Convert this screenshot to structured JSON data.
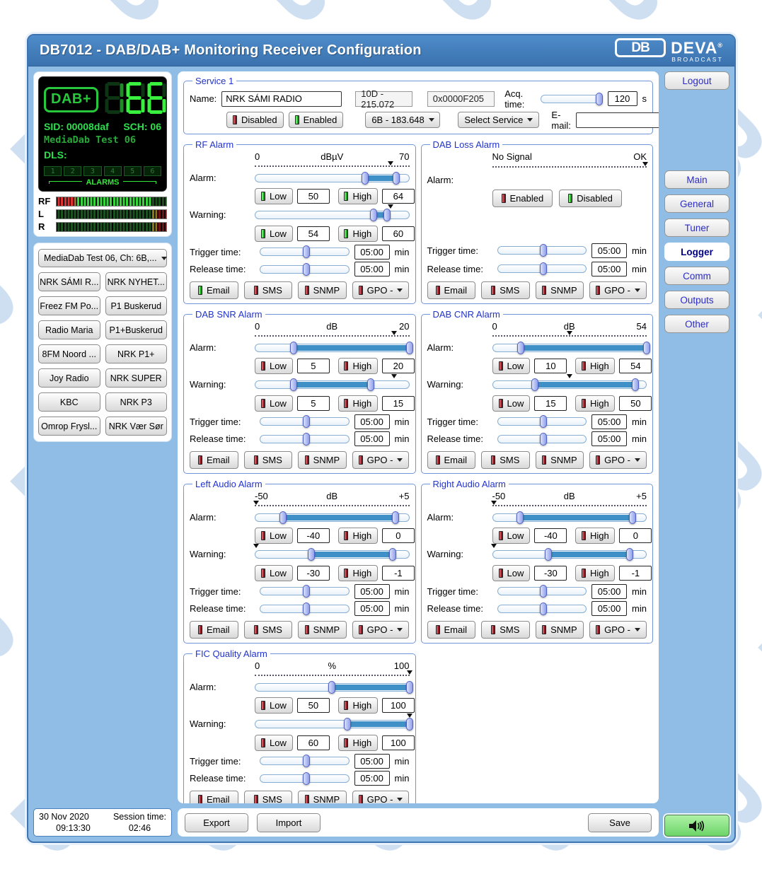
{
  "window": {
    "title": "DB7012 - DAB/DAB+ Monitoring Receiver Configuration",
    "logo": {
      "monogram": "DB",
      "brand": "DEVA",
      "reg": "®",
      "sub": "BROADCAST"
    }
  },
  "lcd": {
    "badge": "DAB+",
    "digits": [
      {
        "char": "1",
        "level": "dim"
      },
      {
        "char": "6",
        "level": "bright"
      },
      {
        "char": "6",
        "level": "bright"
      }
    ],
    "sid": "SID: 00008daf",
    "sch": "SCH: 06",
    "ensemble": "MediaDab Test 06",
    "dls": "DLS:",
    "alarm_cells": [
      "1",
      "2",
      "3",
      "4",
      "5",
      "6"
    ],
    "alarms_label": "ALARMS"
  },
  "meters": [
    {
      "label": "RF",
      "kind": "rf"
    },
    {
      "label": "L",
      "kind": "audio"
    },
    {
      "label": "R",
      "kind": "audio"
    }
  ],
  "stations": {
    "dropdown": "MediaDab Test 06, Ch: 6B,...",
    "buttons": [
      "NRK SÁMI R...",
      "NRK NYHET...",
      "Freez FM Po...",
      "P1 Buskerud",
      "Radio Maria",
      "P1+Buskerud",
      "8FM Noord ...",
      "NRK P1+",
      "Joy Radio",
      "NRK SUPER",
      "KBC",
      "NRK P3",
      "Omrop Frysl...",
      "NRK Vær Sør"
    ]
  },
  "service": {
    "legend": "Service 1",
    "name_label": "Name:",
    "name_value": "NRK SÁMI RADIO",
    "freq_info": "10D - 215.072",
    "hex_id": "0x0000F205",
    "acq_label": "Acq. time:",
    "acq_value": "120",
    "acq_unit": "s",
    "acq_pct": 95,
    "disabled_label": "Disabled",
    "enabled_label": "Enabled",
    "channel_dropdown": "6B - 183.648",
    "service_dropdown": "Select Service",
    "email_label": "E-mail:",
    "email_value": ""
  },
  "labels": {
    "alarm": "Alarm:",
    "warning": "Warning:",
    "trigger": "Trigger time:",
    "release": "Release time:",
    "low": "Low",
    "high": "High",
    "min": "min"
  },
  "panels": [
    {
      "title": "RF Alarm",
      "type": "range",
      "scale": {
        "left": "0",
        "mid": "dBµV",
        "right": "70"
      },
      "marker_pct": 88,
      "alarm": {
        "low": "50",
        "high": "64",
        "low_pct": 71.4,
        "high_pct": 91.4,
        "led": "green"
      },
      "warning": {
        "low": "54",
        "high": "60",
        "low_pct": 77.1,
        "high_pct": 85.7,
        "led": "green"
      },
      "trigger": "05:00",
      "release": "05:00",
      "trigger_pct": 52,
      "release_pct": 52,
      "notify": [
        {
          "label": "Email",
          "led": "green"
        },
        {
          "label": "SMS",
          "led": "red"
        },
        {
          "label": "SNMP",
          "led": "red"
        },
        {
          "label": "GPO -",
          "led": "red",
          "dropdown": true
        }
      ]
    },
    {
      "title": "DAB Loss Alarm",
      "type": "enable",
      "scale": {
        "left": "No Signal",
        "mid": "",
        "right": "OK"
      },
      "marker_pct": 99,
      "buttons": [
        {
          "label": "Enabled",
          "led": "red"
        },
        {
          "label": "Disabled",
          "led": "green"
        }
      ],
      "trigger": "05:00",
      "release": "05:00",
      "trigger_pct": 52,
      "release_pct": 52,
      "notify": [
        {
          "label": "Email",
          "led": "red"
        },
        {
          "label": "SMS",
          "led": "red"
        },
        {
          "label": "SNMP",
          "led": "red"
        },
        {
          "label": "GPO -",
          "led": "red",
          "dropdown": true
        }
      ]
    },
    {
      "title": "DAB SNR Alarm",
      "type": "range",
      "scale": {
        "left": "0",
        "mid": "dB",
        "right": "20"
      },
      "marker_pct": 90,
      "alarm": {
        "low": "5",
        "high": "20",
        "low_pct": 25,
        "high_pct": 100,
        "led": "red"
      },
      "warning": {
        "low": "5",
        "high": "15",
        "low_pct": 25,
        "high_pct": 75,
        "led": "red"
      },
      "trigger": "05:00",
      "release": "05:00",
      "trigger_pct": 52,
      "release_pct": 52,
      "notify": [
        {
          "label": "Email",
          "led": "red"
        },
        {
          "label": "SMS",
          "led": "red"
        },
        {
          "label": "SNMP",
          "led": "red"
        },
        {
          "label": "GPO -",
          "led": "red",
          "dropdown": true
        }
      ]
    },
    {
      "title": "DAB CNR Alarm",
      "type": "range",
      "scale": {
        "left": "0",
        "mid": "dB",
        "right": "54"
      },
      "marker_pct": 50,
      "alarm": {
        "low": "10",
        "high": "54",
        "low_pct": 18.5,
        "high_pct": 100,
        "led": "red"
      },
      "warning": {
        "low": "15",
        "high": "50",
        "low_pct": 27.8,
        "high_pct": 92.6,
        "led": "red"
      },
      "trigger": "05:00",
      "release": "05:00",
      "trigger_pct": 52,
      "release_pct": 52,
      "notify": [
        {
          "label": "Email",
          "led": "red"
        },
        {
          "label": "SMS",
          "led": "red"
        },
        {
          "label": "SNMP",
          "led": "red"
        },
        {
          "label": "GPO -",
          "led": "red",
          "dropdown": true
        }
      ]
    },
    {
      "title": "Left Audio Alarm",
      "type": "range",
      "scale": {
        "left": "-50",
        "mid": "dB",
        "right": "+5"
      },
      "marker_pct": 1,
      "alarm": {
        "low": "-40",
        "high": "0",
        "low_pct": 18.2,
        "high_pct": 90.9,
        "led": "red"
      },
      "warning": {
        "low": "-30",
        "high": "-1",
        "low_pct": 36.4,
        "high_pct": 89.1,
        "led": "red"
      },
      "trigger": "05:00",
      "release": "05:00",
      "trigger_pct": 52,
      "release_pct": 52,
      "notify": [
        {
          "label": "Email",
          "led": "red"
        },
        {
          "label": "SMS",
          "led": "red"
        },
        {
          "label": "SNMP",
          "led": "red"
        },
        {
          "label": "GPO -",
          "led": "red",
          "dropdown": true
        }
      ]
    },
    {
      "title": "Right Audio Alarm",
      "type": "range",
      "scale": {
        "left": "-50",
        "mid": "dB",
        "right": "+5"
      },
      "marker_pct": 1,
      "alarm": {
        "low": "-40",
        "high": "0",
        "low_pct": 18.2,
        "high_pct": 90.9,
        "led": "red"
      },
      "warning": {
        "low": "-30",
        "high": "-1",
        "low_pct": 36.4,
        "high_pct": 89.1,
        "led": "red"
      },
      "trigger": "05:00",
      "release": "05:00",
      "trigger_pct": 52,
      "release_pct": 52,
      "notify": [
        {
          "label": "Email",
          "led": "red"
        },
        {
          "label": "SMS",
          "led": "red"
        },
        {
          "label": "SNMP",
          "led": "red"
        },
        {
          "label": "GPO -",
          "led": "red",
          "dropdown": true
        }
      ]
    },
    {
      "title": "FIC Quality Alarm",
      "type": "range",
      "scale": {
        "left": "0",
        "mid": "%",
        "right": "100"
      },
      "marker_pct": 100,
      "alarm": {
        "low": "50",
        "high": "100",
        "low_pct": 50,
        "high_pct": 100,
        "led": "red"
      },
      "warning": {
        "low": "60",
        "high": "100",
        "low_pct": 60,
        "high_pct": 100,
        "led": "red"
      },
      "trigger": "05:00",
      "release": "05:00",
      "trigger_pct": 52,
      "release_pct": 52,
      "notify": [
        {
          "label": "Email",
          "led": "red"
        },
        {
          "label": "SMS",
          "led": "red"
        },
        {
          "label": "SNMP",
          "led": "red"
        },
        {
          "label": "GPO -",
          "led": "red",
          "dropdown": true
        }
      ]
    }
  ],
  "sidebar": {
    "logout": "Logout",
    "tabs": [
      {
        "label": "Main",
        "active": false
      },
      {
        "label": "General",
        "active": false
      },
      {
        "label": "Tuner",
        "active": false
      },
      {
        "label": "Logger",
        "active": true
      },
      {
        "label": "Comm",
        "active": false
      },
      {
        "label": "Outputs",
        "active": false
      },
      {
        "label": "Other",
        "active": false
      }
    ]
  },
  "footer": {
    "date": "30 Nov 2020",
    "time": "09:13:30",
    "session_label": "Session time:",
    "session_value": "02:46",
    "export": "Export",
    "import": "Import",
    "save": "Save"
  },
  "colors": {
    "accent": "#4090c8",
    "led_green": "#2cc42c",
    "led_red": "#aa2233",
    "lcd_green": "#35e83a",
    "sidebar_bg": "#8fbde6"
  }
}
